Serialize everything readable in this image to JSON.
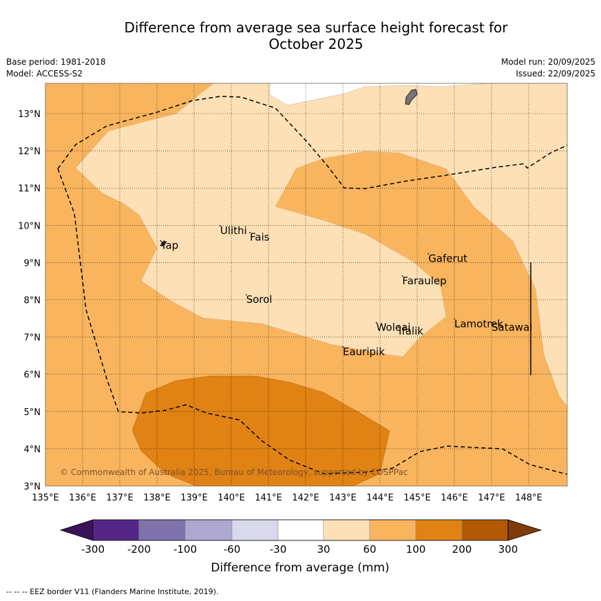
{
  "title": {
    "line1": "Difference from average sea surface height forecast for",
    "line2": "October 2025"
  },
  "meta": {
    "base_period": "Base period: 1981-2018",
    "model": "Model: ACCESS-S2",
    "model_run": "Model run: 20/09/2025",
    "issued": "Issued: 22/09/2025"
  },
  "map": {
    "lon_range": [
      135,
      149
    ],
    "lat_range": [
      3,
      13.8
    ],
    "lon_ticks": [
      "135°E",
      "136°E",
      "137°E",
      "138°E",
      "139°E",
      "140°E",
      "141°E",
      "142°E",
      "143°E",
      "144°E",
      "145°E",
      "146°E",
      "147°E",
      "148°E"
    ],
    "lat_ticks": [
      "3°N",
      "4°N",
      "5°N",
      "6°N",
      "7°N",
      "8°N",
      "9°N",
      "10°N",
      "11°N",
      "12°N",
      "13°N"
    ],
    "places": [
      {
        "name": "Yap",
        "lon": 138.1,
        "lat": 9.55
      },
      {
        "name": "Ulithi",
        "lon": 139.7,
        "lat": 9.95
      },
      {
        "name": "Fais",
        "lon": 140.5,
        "lat": 9.77
      },
      {
        "name": "Gaferut",
        "lon": 145.3,
        "lat": 9.2
      },
      {
        "name": "Faraulep",
        "lon": 144.6,
        "lat": 8.6
      },
      {
        "name": "Sorol",
        "lon": 140.4,
        "lat": 8.1
      },
      {
        "name": "Lamotrek",
        "lon": 146.0,
        "lat": 7.45
      },
      {
        "name": "Woleai",
        "lon": 143.9,
        "lat": 7.35
      },
      {
        "name": "Ifalik",
        "lon": 144.5,
        "lat": 7.25
      },
      {
        "name": "Satawal",
        "lon": 147.0,
        "lat": 7.35
      },
      {
        "name": "Eauripik",
        "lon": 143.0,
        "lat": 6.7
      }
    ],
    "copyright": "© Commonwealth of Australia 2025, Bureau of Meteorology, supported by COSPPac"
  },
  "legend": {
    "tick_labels": [
      "-300",
      "-200",
      "-100",
      "-60",
      "-30",
      "30",
      "60",
      "100",
      "200",
      "300"
    ],
    "colors": [
      "#3b1258",
      "#542786",
      "#7f73ad",
      "#aea8d1",
      "#d8d9ea",
      "#ffffff",
      "#fde0b6",
      "#f9b55e",
      "#e08214",
      "#b35806",
      "#7f3b08"
    ],
    "axis_label": "Difference from average (mm)"
  },
  "footnote": "--  --  -- EEZ border V11 (Flanders Marine Institute, 2019)."
}
